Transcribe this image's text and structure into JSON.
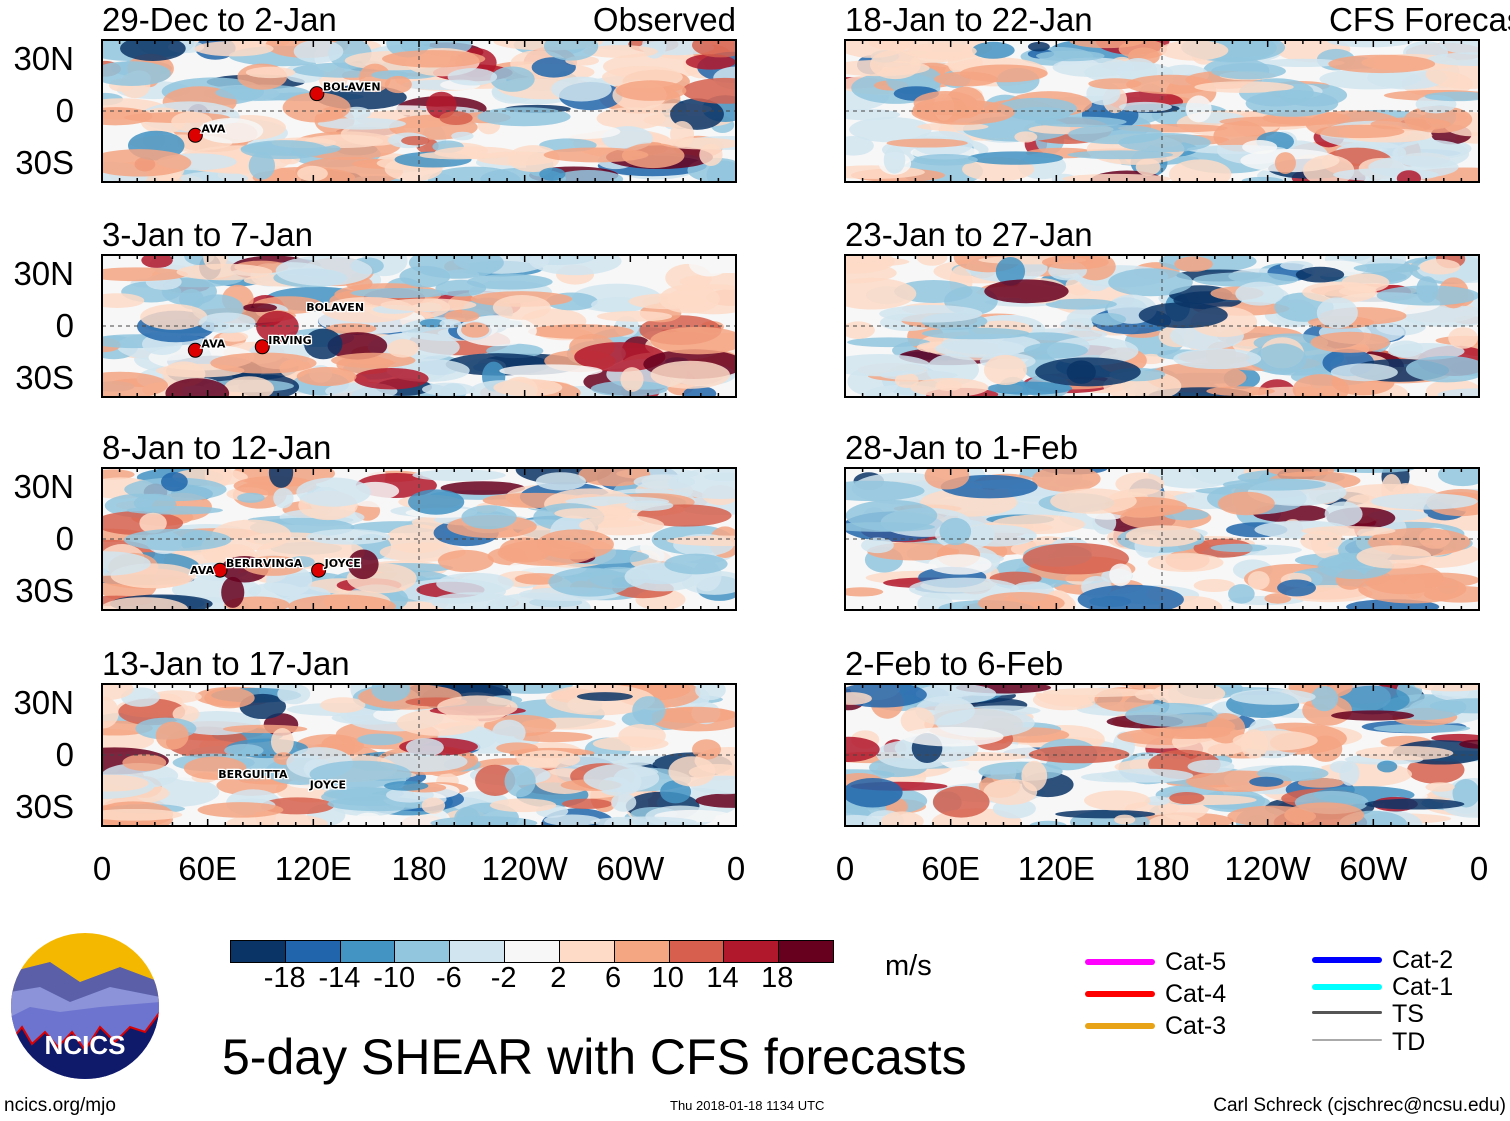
{
  "chart_data": {
    "type": "heatmap",
    "title": "5-day SHEAR with CFS forecasts",
    "units": "m/s",
    "lat_ticks": [
      "30N",
      "0",
      "30S"
    ],
    "lon_ticks": [
      "0",
      "60E",
      "120E",
      "180",
      "120W",
      "60W",
      "0"
    ],
    "section_labels": {
      "observed": "Observed",
      "forecast": "CFS Forecast"
    },
    "panels": [
      {
        "title": "29-Dec to 2-Jan",
        "section": "observed",
        "seed": 11,
        "storms": [
          {
            "name": "AVA",
            "lon": 53,
            "lat": -14,
            "marker": true
          },
          {
            "name": "BOLAVEN",
            "lon": 122,
            "lat": 10,
            "marker": true
          }
        ]
      },
      {
        "title": "3-Jan to 7-Jan",
        "section": "observed",
        "seed": 23,
        "storms": [
          {
            "name": "BOLAVEN",
            "lon": 116,
            "lat": 7,
            "marker": false
          },
          {
            "name": "AVA",
            "lon": 53,
            "lat": -14,
            "marker": true
          },
          {
            "name": "IRVING",
            "lon": 91,
            "lat": -12,
            "marker": true
          }
        ]
      },
      {
        "title": "8-Jan to 12-Jan",
        "section": "observed",
        "seed": 37,
        "storms": [
          {
            "name": "BERIRVINGA",
            "lon": 67,
            "lat": -18,
            "marker": true
          },
          {
            "name": "AVA",
            "lon": 50,
            "lat": -22,
            "marker": false
          },
          {
            "name": "JOYCE",
            "lon": 123,
            "lat": -18,
            "marker": true
          }
        ]
      },
      {
        "title": "13-Jan to 17-Jan",
        "section": "observed",
        "seed": 41,
        "storms": [
          {
            "name": "BERGUITTA",
            "lon": 66,
            "lat": -15,
            "marker": false
          },
          {
            "name": "JOYCE",
            "lon": 118,
            "lat": -21,
            "marker": false
          }
        ]
      },
      {
        "title": "18-Jan to 22-Jan",
        "section": "forecast",
        "seed": 53,
        "storms": []
      },
      {
        "title": "23-Jan to 27-Jan",
        "section": "forecast",
        "seed": 67,
        "storms": []
      },
      {
        "title": "28-Jan to 1-Feb",
        "section": "forecast",
        "seed": 71,
        "storms": []
      },
      {
        "title": "2-Feb to 6-Feb",
        "section": "forecast",
        "seed": 89,
        "storms": []
      }
    ],
    "colorbar": {
      "colors": [
        "#0b3466",
        "#2166ac",
        "#4393c3",
        "#92c5de",
        "#d1e5f0",
        "#f7f7f7",
        "#fddbc7",
        "#f4a582",
        "#d6604d",
        "#b2182b",
        "#67001f"
      ],
      "labels": [
        "-18",
        "-14",
        "-10",
        "-6",
        "-2",
        "2",
        "6",
        "10",
        "14",
        "18"
      ]
    },
    "legend": [
      {
        "label": "Cat-5",
        "color": "#ff00ff"
      },
      {
        "label": "Cat-4",
        "color": "#ff0000"
      },
      {
        "label": "Cat-3",
        "color": "#e8a317"
      },
      {
        "label": "Cat-2",
        "color": "#0000ff"
      },
      {
        "label": "Cat-1",
        "color": "#00ffff"
      },
      {
        "label": "TS",
        "color": "#555555"
      },
      {
        "label": "TD",
        "color": "#aaaaaa"
      }
    ]
  },
  "footer": {
    "site": "ncics.org/mjo",
    "timestamp": "Thu 2018-01-18 1134 UTC",
    "author": "Carl Schreck (cjschrec@ncsu.edu)",
    "logo": "NCICS"
  }
}
